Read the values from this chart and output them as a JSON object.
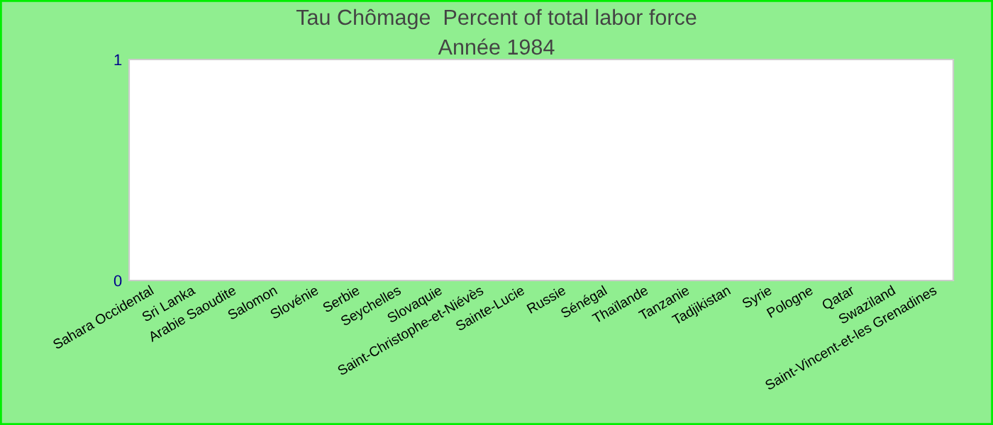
{
  "chart_data": {
    "type": "bar",
    "title": "Tau Chômage  Percent of total labor force",
    "subtitle": "Année 1984",
    "categories": [
      "Sahara Occidental",
      "Sri Lanka",
      "Arabie Saoudite",
      "Salomon",
      "Slovénie",
      "Serbie",
      "Seychelles",
      "Slovaquie",
      "Saint-Christophe-et-Niévès",
      "Sainte-Lucie",
      "Russie",
      "Sénégal",
      "Thaïlande",
      "Tanzanie",
      "Tadjikistan",
      "Syrie",
      "Pologne",
      "Qatar",
      "Swaziland",
      "Saint-Vincent-et-les Grenadines"
    ],
    "values": [
      null,
      null,
      null,
      null,
      null,
      null,
      null,
      null,
      null,
      null,
      null,
      null,
      null,
      null,
      null,
      null,
      null,
      null,
      null,
      null
    ],
    "ylim": [
      0,
      1
    ],
    "yticks": [
      0,
      1
    ],
    "grid": false
  }
}
